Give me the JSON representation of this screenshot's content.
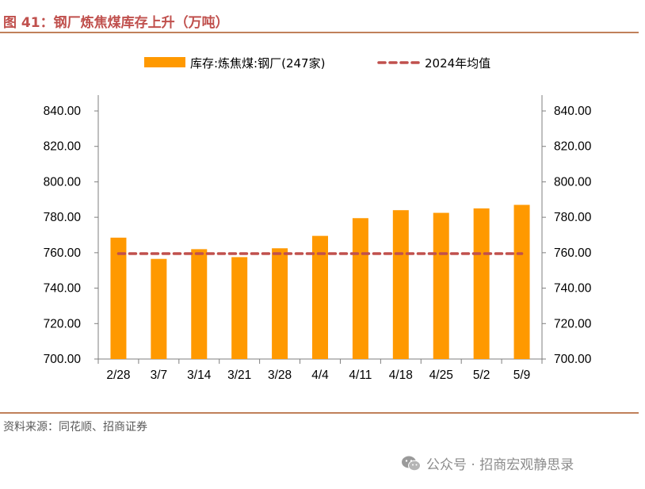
{
  "header": {
    "title": "图 41：钢厂炼焦煤库存上升（万吨）"
  },
  "footer": {
    "source": "资料来源：同花顺、招商证券"
  },
  "watermark": {
    "text": "公众号 · 招商宏观静思录",
    "icon": "wechat-icon"
  },
  "colors": {
    "bar": "#ff9900",
    "avg_line": "#c0504d",
    "rule": "#c0805a",
    "title": "#c0504d"
  },
  "chart_data": {
    "type": "bar",
    "categories": [
      "2/28",
      "3/7",
      "3/14",
      "3/21",
      "3/28",
      "4/4",
      "4/11",
      "4/18",
      "4/25",
      "5/2",
      "5/9"
    ],
    "series": [
      {
        "name": "库存:炼焦煤:钢厂(247家)",
        "type": "bar",
        "values": [
          768.5,
          756.5,
          762.0,
          757.5,
          762.5,
          769.5,
          779.5,
          784.0,
          782.5,
          785.0,
          787.0
        ]
      },
      {
        "name": "2024年均值",
        "type": "line",
        "style": "dashed",
        "values": [
          759.5,
          759.5,
          759.5,
          759.5,
          759.5,
          759.5,
          759.5,
          759.5,
          759.5,
          759.5,
          759.5
        ]
      }
    ],
    "ylim": [
      700,
      840
    ],
    "yticks": [
      "700.00",
      "720.00",
      "740.00",
      "760.00",
      "780.00",
      "800.00",
      "820.00",
      "840.00"
    ],
    "secondary_ylim": [
      700,
      840
    ],
    "secondary_yticks": [
      "700.00",
      "720.00",
      "740.00",
      "760.00",
      "780.00",
      "800.00",
      "820.00",
      "840.00"
    ],
    "legend_position": "top",
    "grid": false
  }
}
